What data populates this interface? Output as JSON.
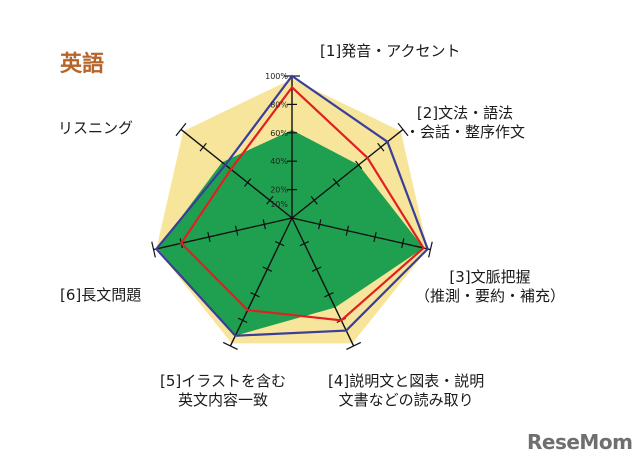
{
  "chart_data": {
    "type": "radar",
    "title": "英語",
    "categories": [
      "[1]発音・アクセント",
      "[2]文法・語法\n・会話・整序作文",
      "[3]文脈把握\n（推測・要約・補充）",
      "[4]説明文と図表・説明\n文書などの読み取り",
      "[5]イラストを含む\n英文内容一致",
      "[6]長文問題",
      "リスニング"
    ],
    "tick_labels": [
      "10%",
      "20%",
      "40%",
      "60%",
      "80%",
      "100%"
    ],
    "rlim": [
      0,
      100
    ],
    "series": [
      {
        "color": "#f6e59a",
        "fill": true,
        "values": [
          98,
          98,
          98,
          98,
          98,
          98,
          98
        ]
      },
      {
        "color": "#1fa050",
        "fill": true,
        "values": [
          62,
          60,
          95,
          70,
          92,
          97,
          63
        ]
      },
      {
        "color": "#3a3d9a",
        "fill": false,
        "values": [
          100,
          86,
          98,
          88,
          92,
          98,
          60
        ]
      },
      {
        "color": "#e02020",
        "fill": false,
        "values": [
          92,
          68,
          95,
          80,
          72,
          80,
          55
        ]
      }
    ],
    "watermark": "ReseMom"
  }
}
